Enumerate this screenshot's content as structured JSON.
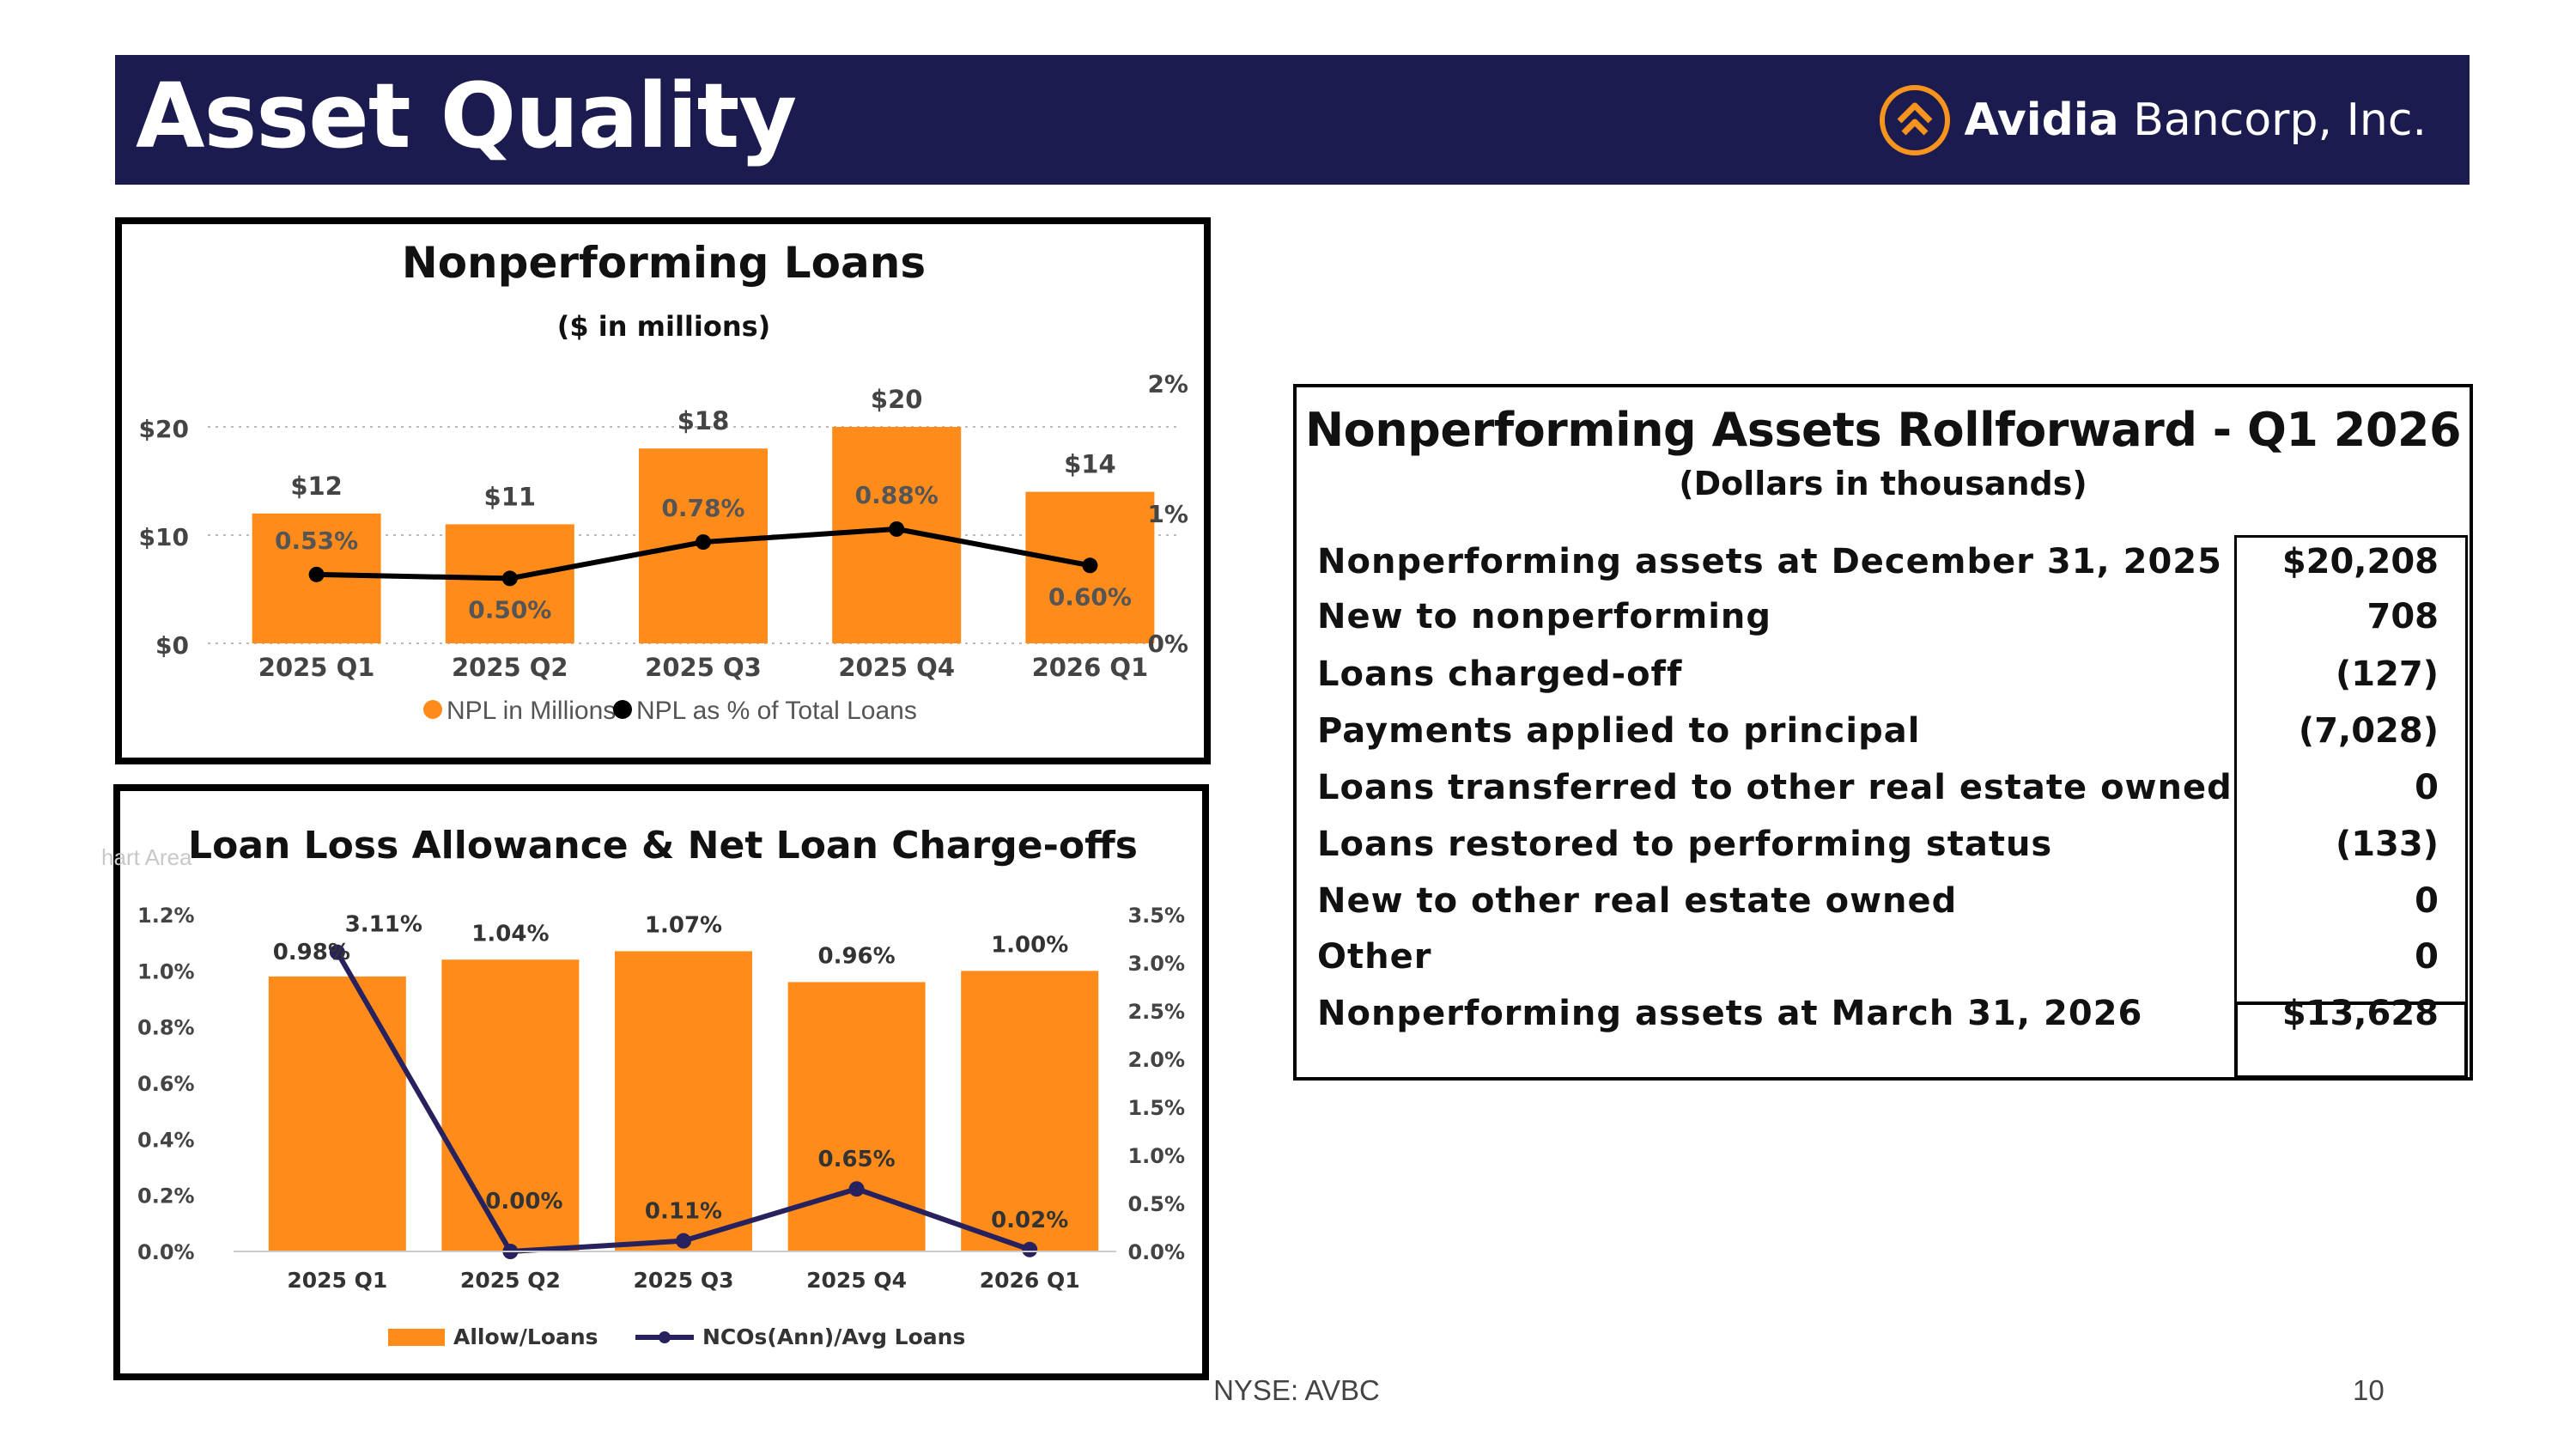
{
  "header": {
    "title": "Asset Quality",
    "logo_bold": "Avidia",
    "logo_rest": " Bancorp, Inc."
  },
  "colors": {
    "navy": "#1b1b50",
    "orange": "#ff8c1a",
    "logo_orange": "#f7941d",
    "line_dark": "#000000",
    "line_navy": "#27215e"
  },
  "chart_data": [
    {
      "type": "bar",
      "title": "Nonperforming Loans",
      "subtitle": "($ in millions)",
      "categories": [
        "2025 Q1",
        "2025 Q2",
        "2025 Q3",
        "2025 Q4",
        "2026 Q1"
      ],
      "series": [
        {
          "name": "NPL in Millions",
          "type": "bar",
          "axis": "left",
          "values": [
            12,
            11,
            18,
            20,
            14
          ],
          "labels": [
            "$12",
            "$11",
            "$18",
            "$20",
            "$14"
          ]
        },
        {
          "name": "NPL as % of Total Loans",
          "type": "line",
          "axis": "right",
          "values": [
            0.53,
            0.5,
            0.78,
            0.88,
            0.6
          ],
          "labels": [
            "0.53%",
            "0.50%",
            "0.78%",
            "0.88%",
            "0.60%"
          ]
        }
      ],
      "y_left": {
        "min": 0,
        "max": 20,
        "ticks": [
          "$0",
          "$10",
          "$20"
        ]
      },
      "y_right": {
        "min": 0,
        "max": 2,
        "ticks": [
          "0%",
          "1%",
          "2%"
        ]
      },
      "grid": "dotted",
      "legend": "bottom"
    },
    {
      "type": "bar",
      "title": "Loan Loss Allowance & Net Loan Charge-offs",
      "categories": [
        "2025 Q1",
        "2025 Q2",
        "2025 Q3",
        "2025 Q4",
        "2026 Q1"
      ],
      "series": [
        {
          "name": "Allow/Loans",
          "type": "bar",
          "axis": "left",
          "values": [
            0.98,
            1.04,
            1.07,
            0.96,
            1.0
          ],
          "labels": [
            "0.98%",
            "1.04%",
            "1.07%",
            "0.96%",
            "1.00%"
          ]
        },
        {
          "name": "NCOs(Ann)/Avg Loans",
          "type": "line",
          "axis": "right",
          "values": [
            3.11,
            0.0,
            0.11,
            0.65,
            0.02
          ],
          "labels": [
            "3.11%",
            "0.00%",
            "0.11%",
            "0.65%",
            "0.02%"
          ]
        }
      ],
      "y_left": {
        "min": 0,
        "max": 1.2,
        "ticks": [
          "0.0%",
          "0.2%",
          "0.4%",
          "0.6%",
          "0.8%",
          "1.0%",
          "1.2%"
        ]
      },
      "y_right": {
        "min": 0,
        "max": 3.5,
        "ticks": [
          "0.0%",
          "0.5%",
          "1.0%",
          "1.5%",
          "2.0%",
          "2.5%",
          "3.0%",
          "3.5%"
        ]
      },
      "grid": "none",
      "legend": "bottom"
    },
    {
      "type": "table",
      "title": "Nonperforming Assets Rollforward - Q1 2026",
      "subtitle": "(Dollars in thousands)",
      "rows": [
        {
          "label": "Nonperforming assets at December 31, 2025",
          "value": "$20,208"
        },
        {
          "label": "New to nonperforming",
          "value": "708"
        },
        {
          "label": "Loans charged-off",
          "value": "(127)"
        },
        {
          "label": "Payments applied to principal",
          "value": "(7,028)"
        },
        {
          "label": "Loans transferred to other real estate owned",
          "value": "0"
        },
        {
          "label": "Loans restored to performing status",
          "value": "(133)"
        },
        {
          "label": "New to other real estate owned",
          "value": "0"
        },
        {
          "label": "Other",
          "value": "0"
        },
        {
          "label": "Nonperforming assets at March 31, 2026",
          "value": "$13,628"
        }
      ]
    }
  ],
  "watermark": "hart Area",
  "footer": {
    "ticker": "NYSE: AVBC",
    "page": "10"
  }
}
